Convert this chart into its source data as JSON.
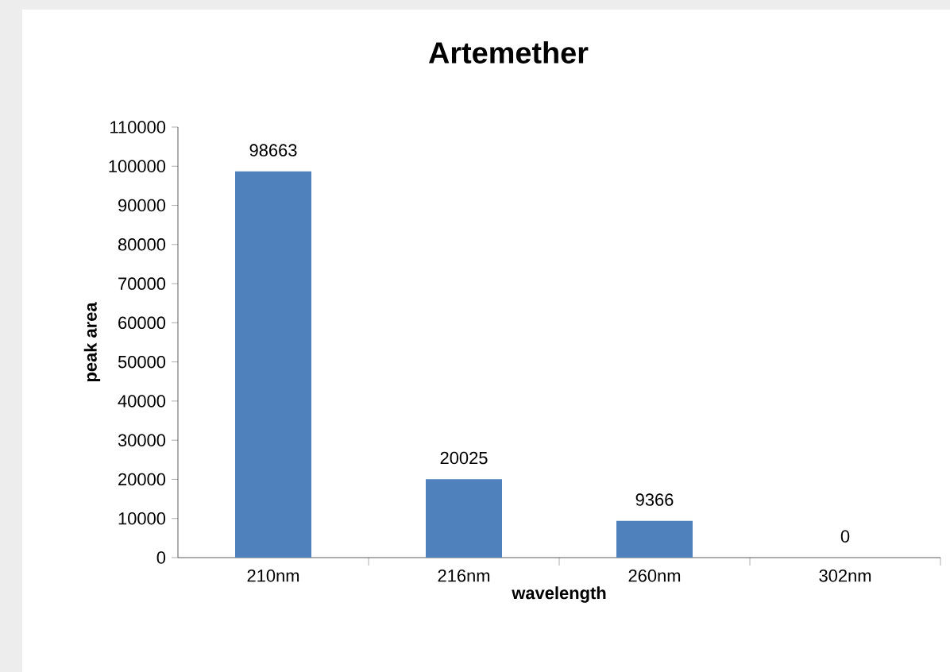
{
  "chart_data": {
    "type": "bar",
    "title": "Artemether",
    "xlabel": "wavelength",
    "ylabel": "peak area",
    "categories": [
      "210nm",
      "216nm",
      "260nm",
      "302nm"
    ],
    "values": [
      98663,
      20025,
      9366,
      0
    ],
    "color": "#4f81bd",
    "ylim": [
      0,
      110000
    ],
    "yticks": [
      0,
      10000,
      20000,
      30000,
      40000,
      50000,
      60000,
      70000,
      80000,
      90000,
      100000,
      110000
    ],
    "data_labels": true
  }
}
